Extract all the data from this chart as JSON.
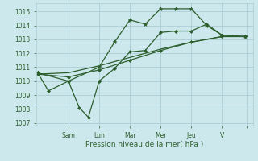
{
  "background_color": "#cce8ec",
  "grid_color": "#aacdd4",
  "line_color": "#2d5e2d",
  "ylim": [
    1006.8,
    1015.6
  ],
  "yticks": [
    1007,
    1008,
    1009,
    1010,
    1011,
    1012,
    1013,
    1014,
    1015
  ],
  "xlabel": "Pression niveau de la mer( hPa )",
  "x_tick_positions": [
    2.0,
    4.0,
    6.0,
    8.0,
    10.0,
    12.0,
    13.6
  ],
  "x_tick_labels": [
    "Sam",
    "Lun",
    "Mar",
    "Mer",
    "Jeu",
    "V",
    ""
  ],
  "xlim": [
    -0.1,
    14.0
  ],
  "series": [
    {
      "x": [
        0.0,
        0.7,
        2.0,
        2.7,
        3.3,
        4.0,
        5.0,
        6.0,
        7.0,
        8.0,
        9.0,
        10.0,
        11.0,
        12.0,
        13.5
      ],
      "y": [
        1010.6,
        1009.3,
        1010.0,
        1008.1,
        1007.4,
        1010.0,
        1010.9,
        1012.1,
        1012.2,
        1013.5,
        1013.6,
        1013.6,
        1014.1,
        1013.3,
        1013.2
      ],
      "marker": "D",
      "markersize": 2.0,
      "linewidth": 0.9
    },
    {
      "x": [
        0.0,
        2.0,
        4.0,
        5.0,
        6.0,
        7.0,
        8.0,
        9.0,
        10.0,
        11.0,
        12.0,
        13.5
      ],
      "y": [
        1010.6,
        1010.0,
        1011.0,
        1012.8,
        1014.4,
        1014.1,
        1015.2,
        1015.2,
        1015.2,
        1014.0,
        1013.3,
        1013.2
      ],
      "marker": "*",
      "markersize": 3.5,
      "linewidth": 0.9
    },
    {
      "x": [
        0.0,
        2.0,
        4.0,
        6.0,
        8.0,
        10.0,
        12.0,
        13.5
      ],
      "y": [
        1010.5,
        1010.6,
        1011.1,
        1011.7,
        1012.3,
        1012.8,
        1013.2,
        1013.2
      ],
      "marker": null,
      "markersize": 0,
      "linewidth": 0.9
    },
    {
      "x": [
        0.0,
        2.0,
        4.0,
        6.0,
        8.0,
        10.0,
        12.0,
        13.5
      ],
      "y": [
        1010.5,
        1010.3,
        1010.8,
        1011.5,
        1012.2,
        1012.8,
        1013.2,
        1013.2
      ],
      "marker": "D",
      "markersize": 2.0,
      "linewidth": 0.9
    }
  ]
}
